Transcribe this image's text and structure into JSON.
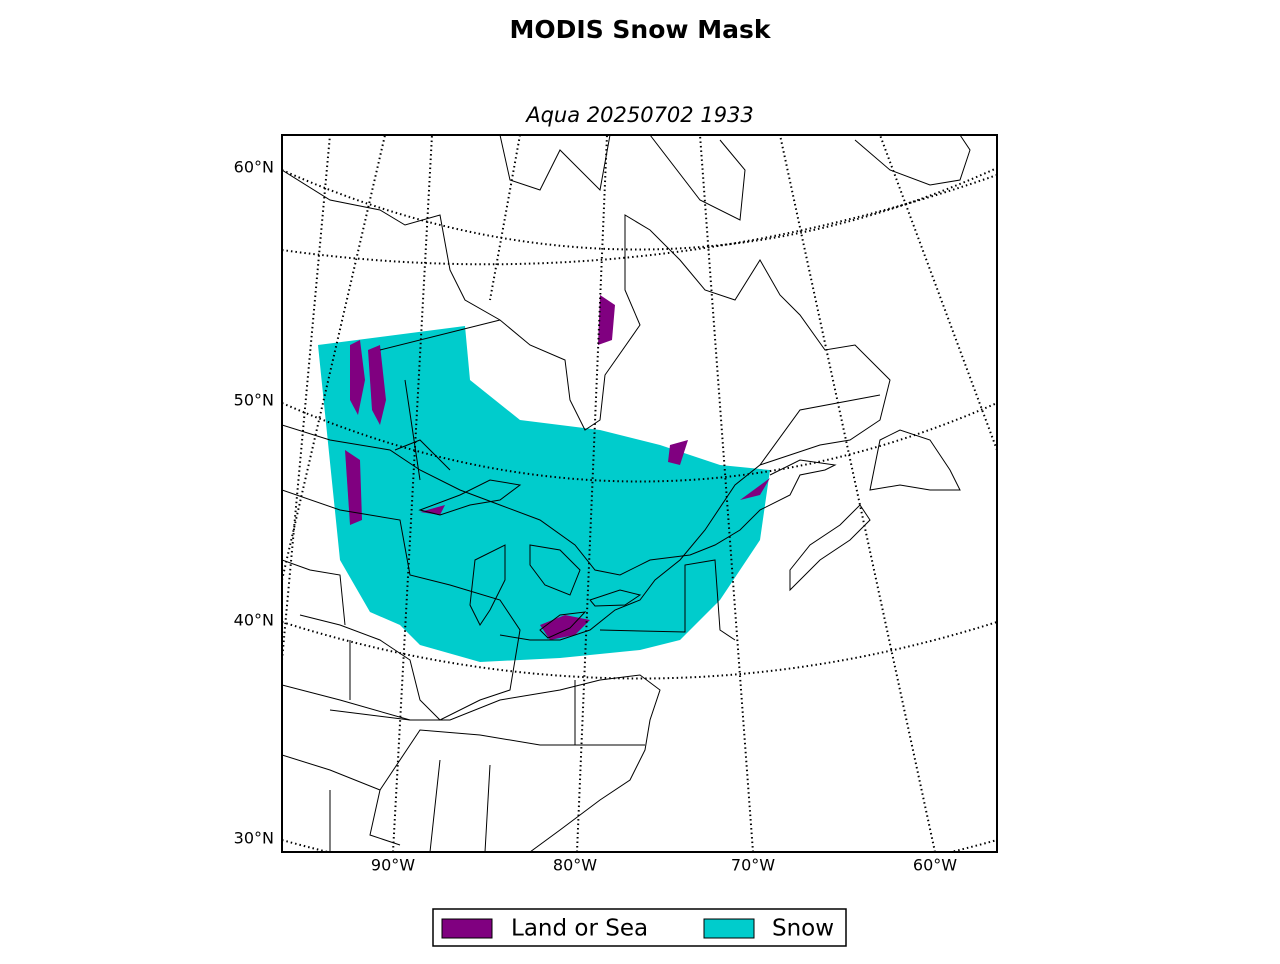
{
  "title": "MODIS Snow Mask",
  "subtitle": "Aqua 20250702 1933",
  "lat_labels": [
    "60°N",
    "50°N",
    "40°N",
    "30°N"
  ],
  "lon_labels": [
    "90°W",
    "80°W",
    "70°W",
    "60°W"
  ],
  "legend": [
    {
      "label": "Land or Sea",
      "color": "#800080"
    },
    {
      "label": "Snow",
      "color": "#00cccc"
    }
  ]
}
